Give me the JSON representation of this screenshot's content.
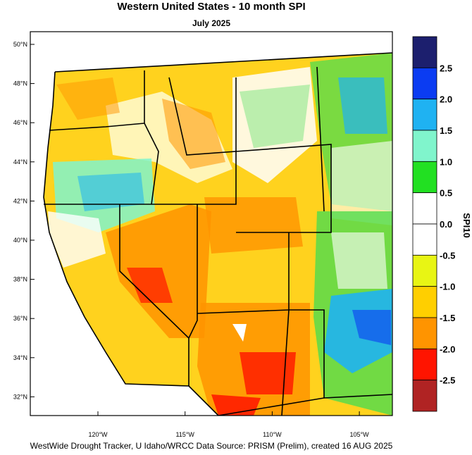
{
  "title": "Western United States - 10 month SPI",
  "subtitle": "July 2025",
  "latitude_labels": [
    "50°N",
    "48°N",
    "46°N",
    "44°N",
    "42°N",
    "40°N",
    "38°N",
    "36°N",
    "34°N",
    "32°N"
  ],
  "longitude_labels": [
    "120°W",
    "115°W",
    "110°W",
    "105°W"
  ],
  "colorbar": {
    "title": "SPI10",
    "colors": [
      "#1c1f6e",
      "#0b3cf2",
      "#1fb2f2",
      "#80f5cc",
      "#22e022",
      "#ffffff",
      "#ffffff",
      "#e8f514",
      "#ffcf00",
      "#ff9400",
      "#ff1400",
      "#b02323"
    ],
    "labels": [
      "2.5",
      "2.0",
      "1.5",
      "1.0",
      "0.5",
      "0.0",
      "-0.5",
      "-1.0",
      "-1.5",
      "-2.0",
      "-2.5"
    ]
  },
  "footer": "WestWide Drought Tracker, U Idaho/WRCC Data Source: PRISM (Prelim), created 16 AUG 2025"
}
